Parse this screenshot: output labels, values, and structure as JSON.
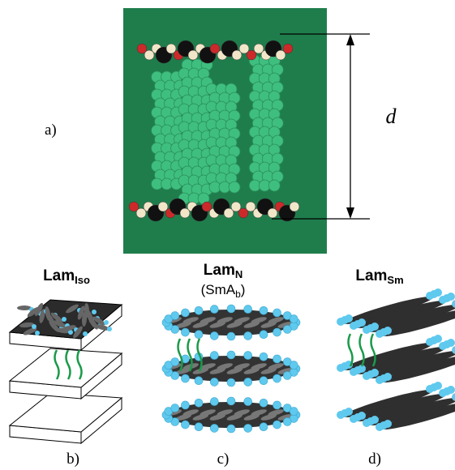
{
  "panel_a": {
    "label": "a)",
    "dimension": "d"
  },
  "panels": [
    {
      "title": "Lam",
      "subscript": "Iso",
      "label": "b)"
    },
    {
      "title": "Lam",
      "subscript": "N",
      "subtitle": "(SmA",
      "subtitle_subscript": "b",
      "subtitle_end": ")",
      "label": "c)"
    },
    {
      "title": "Lam",
      "subscript": "Sm",
      "label": "d)"
    }
  ]
}
